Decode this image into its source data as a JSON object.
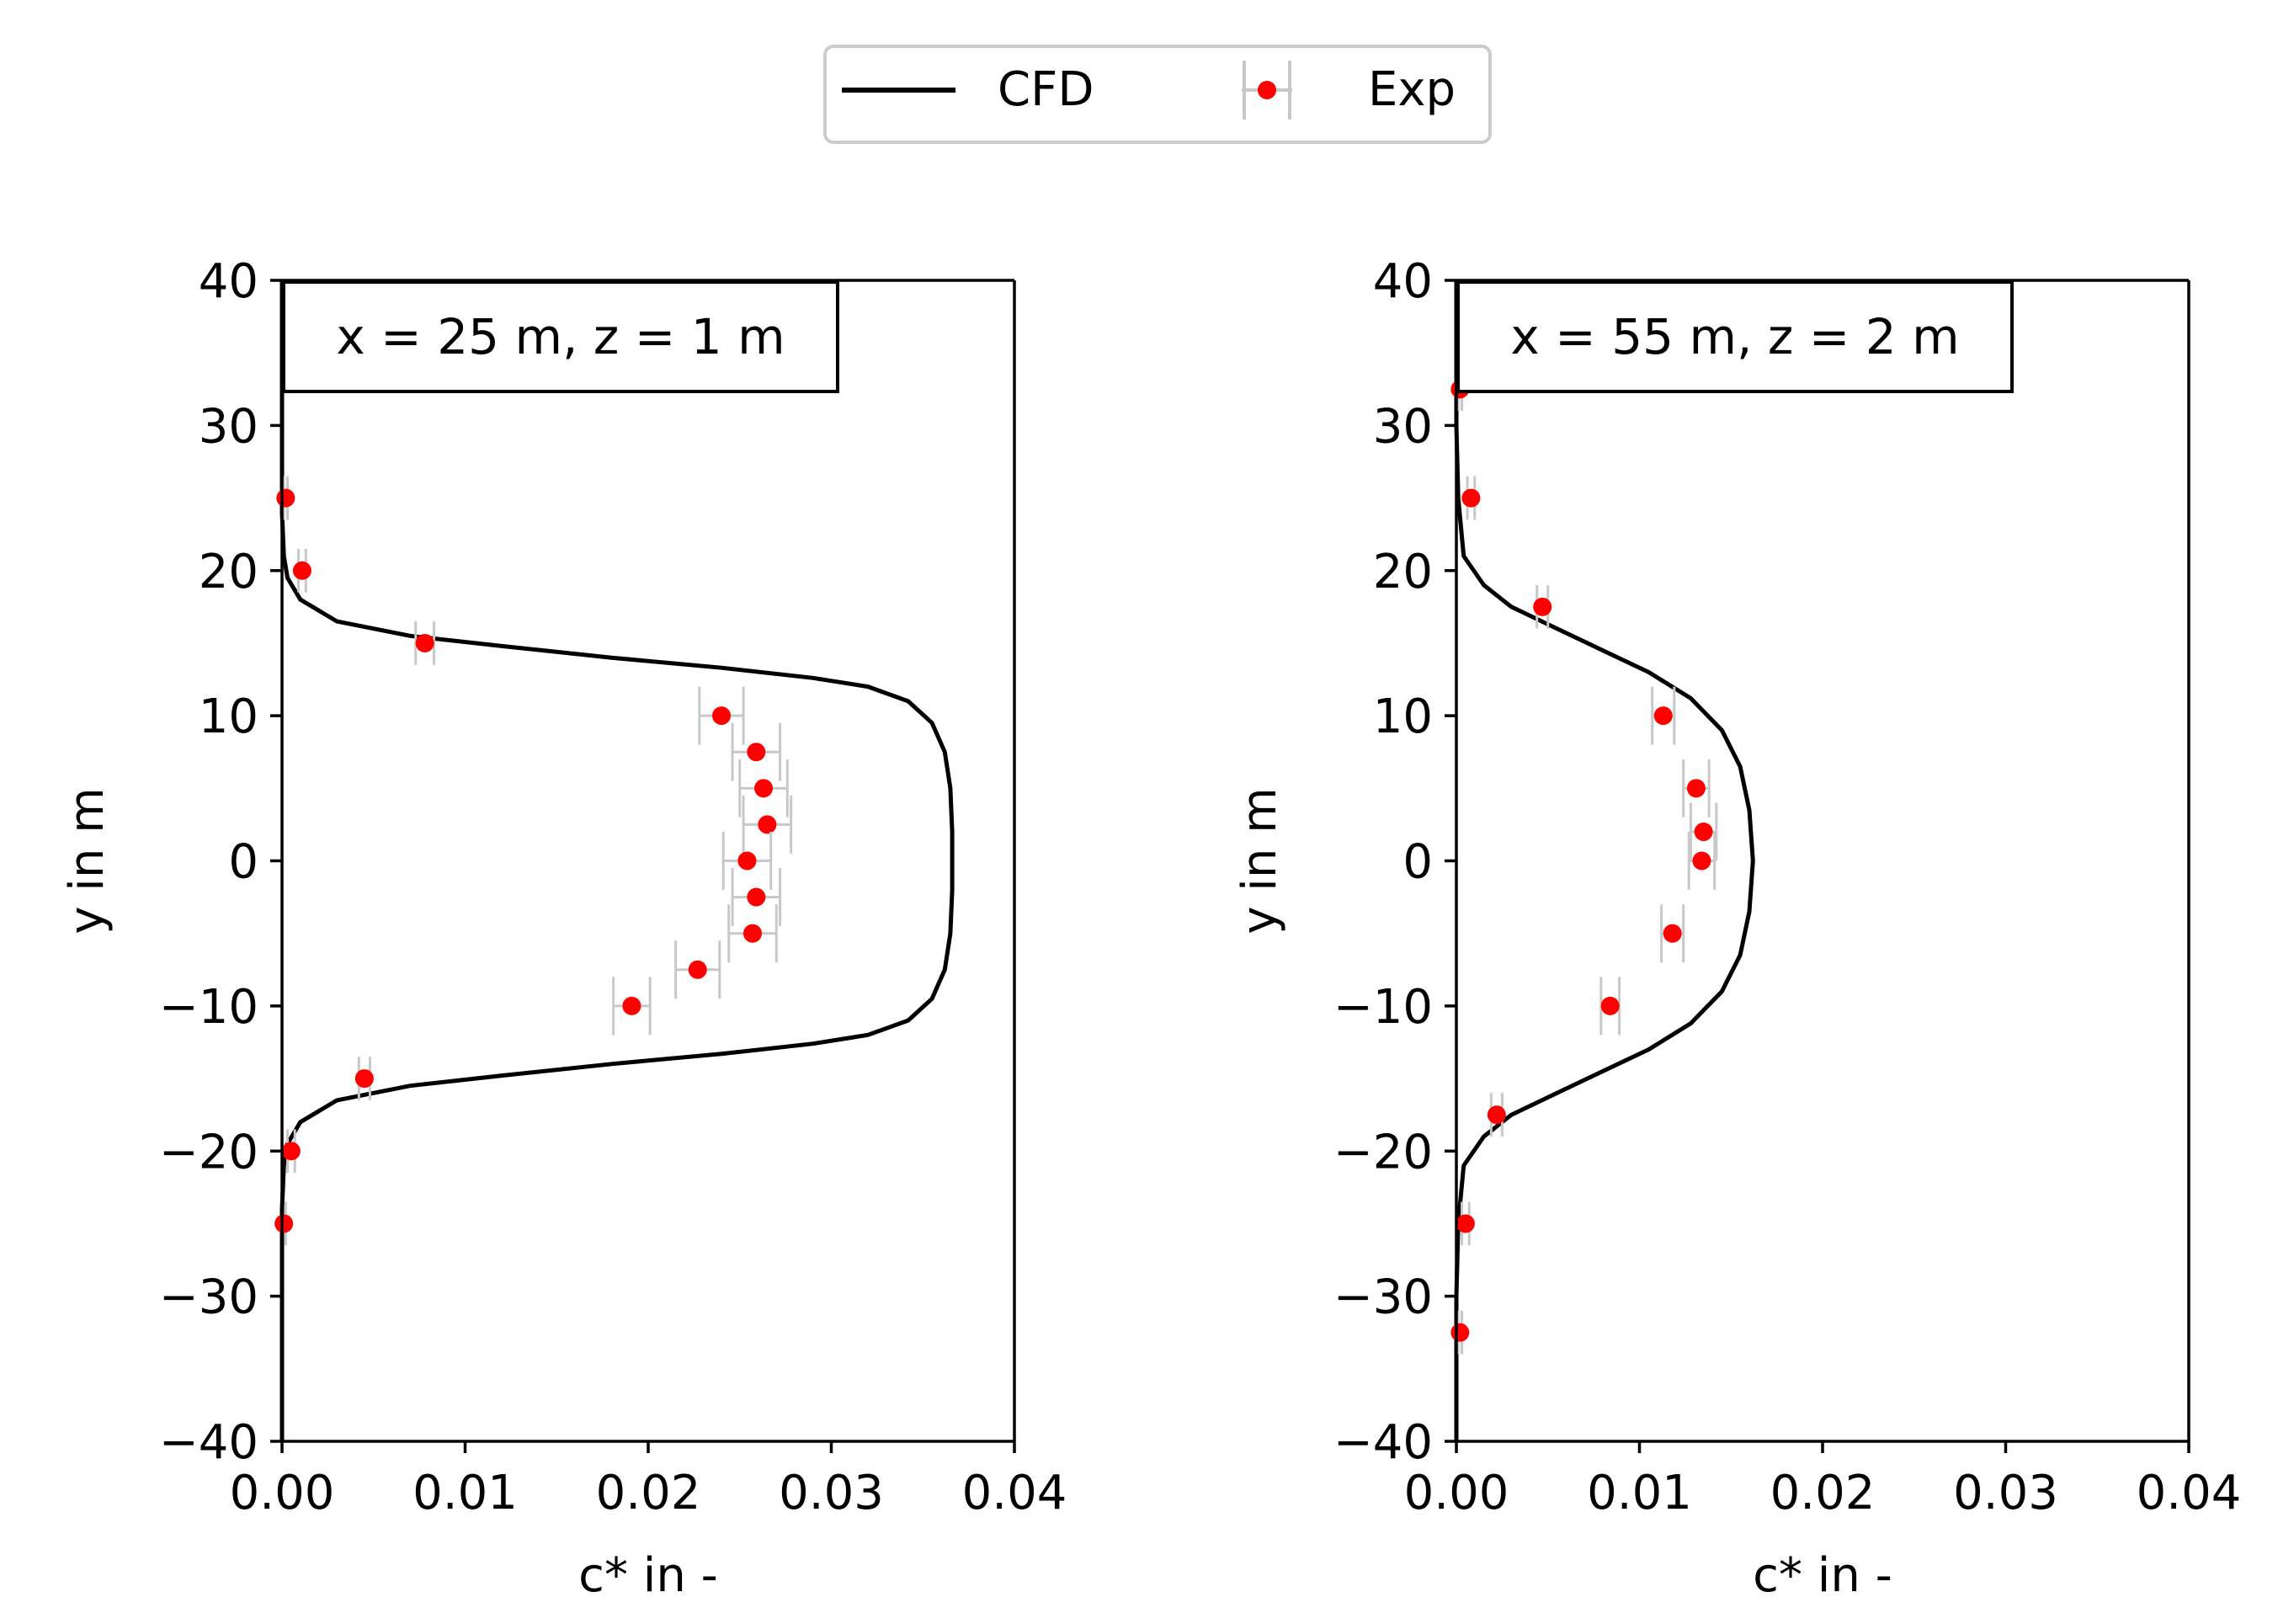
{
  "legend": {
    "entries": [
      {
        "label": "CFD",
        "kind": "line",
        "color": "#000000"
      },
      {
        "label": "Exp",
        "kind": "marker",
        "color": "#ff0000",
        "errorbar_color": "#c8c8c8"
      }
    ]
  },
  "colors": {
    "cfd": "#000000",
    "exp": "#ff0000",
    "errorbar": "#c8c8c8",
    "frame": "#000000"
  },
  "chart_data": [
    {
      "type": "line",
      "annotation": "x = 25 m, z = 1 m",
      "xlabel": "c* in -",
      "ylabel": "y in m",
      "xlim": [
        0,
        0.04
      ],
      "ylim": [
        -40,
        40
      ],
      "xticks": [
        0,
        0.01,
        0.02,
        0.03,
        0.04
      ],
      "xtick_labels": [
        "0.00",
        "0.01",
        "0.02",
        "0.03",
        "0.04"
      ],
      "yticks": [
        -40,
        -30,
        -20,
        -10,
        0,
        10,
        20,
        30,
        40
      ],
      "ytick_labels": [
        "−40",
        "−30",
        "−20",
        "−10",
        "0",
        "10",
        "20",
        "30",
        "40"
      ],
      "series": [
        {
          "name": "CFD",
          "points": [
            [
              0,
              -40
            ],
            [
              0,
              -30
            ],
            [
              0,
              -24
            ],
            [
              0.0001,
              -21
            ],
            [
              0.0003,
              -19.5
            ],
            [
              0.001,
              -18
            ],
            [
              0.003,
              -16.5
            ],
            [
              0.007,
              -15.5
            ],
            [
              0.012,
              -14.8
            ],
            [
              0.018,
              -14
            ],
            [
              0.024,
              -13.3
            ],
            [
              0.029,
              -12.6
            ],
            [
              0.032,
              -12
            ],
            [
              0.0342,
              -11
            ],
            [
              0.0355,
              -9.5
            ],
            [
              0.0362,
              -7.5
            ],
            [
              0.0365,
              -5
            ],
            [
              0.0366,
              -2
            ],
            [
              0.0366,
              0
            ],
            [
              0.0366,
              2
            ],
            [
              0.0365,
              5
            ],
            [
              0.0362,
              7.5
            ],
            [
              0.0355,
              9.5
            ],
            [
              0.0342,
              11
            ],
            [
              0.032,
              12
            ],
            [
              0.029,
              12.6
            ],
            [
              0.024,
              13.3
            ],
            [
              0.018,
              14
            ],
            [
              0.012,
              14.8
            ],
            [
              0.007,
              15.5
            ],
            [
              0.003,
              16.5
            ],
            [
              0.001,
              18
            ],
            [
              0.0003,
              19.5
            ],
            [
              0.0001,
              21
            ],
            [
              0,
              24
            ],
            [
              0,
              30
            ],
            [
              0,
              40
            ]
          ]
        },
        {
          "name": "Exp",
          "points": [
            {
              "x": 0.0002,
              "y": 25,
              "xerr": 0.0001,
              "yerr": 1.5
            },
            {
              "x": 0.0011,
              "y": 20,
              "xerr": 0.0002,
              "yerr": 1.5
            },
            {
              "x": 0.0078,
              "y": 15,
              "xerr": 0.0005,
              "yerr": 1.5
            },
            {
              "x": 0.024,
              "y": 10,
              "xerr": 0.0012,
              "yerr": 2
            },
            {
              "x": 0.0259,
              "y": 7.5,
              "xerr": 0.0013,
              "yerr": 2
            },
            {
              "x": 0.0263,
              "y": 5,
              "xerr": 0.0013,
              "yerr": 2
            },
            {
              "x": 0.0265,
              "y": 2.5,
              "xerr": 0.0013,
              "yerr": 2
            },
            {
              "x": 0.0254,
              "y": 0,
              "xerr": 0.0013,
              "yerr": 2
            },
            {
              "x": 0.0259,
              "y": -2.5,
              "xerr": 0.0013,
              "yerr": 2
            },
            {
              "x": 0.0257,
              "y": -5,
              "xerr": 0.0013,
              "yerr": 2
            },
            {
              "x": 0.0227,
              "y": -7.5,
              "xerr": 0.0012,
              "yerr": 2
            },
            {
              "x": 0.0191,
              "y": -10,
              "xerr": 0.001,
              "yerr": 2
            },
            {
              "x": 0.0045,
              "y": -15,
              "xerr": 0.0003,
              "yerr": 1.5
            },
            {
              "x": 0.0005,
              "y": -20,
              "xerr": 0.0002,
              "yerr": 1.5
            },
            {
              "x": 0.0001,
              "y": -25,
              "xerr": 0.0001,
              "yerr": 1.5
            }
          ]
        }
      ]
    },
    {
      "type": "line",
      "annotation": "x = 55 m, z = 2 m",
      "xlabel": "c* in -",
      "ylabel": "y in m",
      "xlim": [
        0,
        0.04
      ],
      "ylim": [
        -40,
        40
      ],
      "xticks": [
        0,
        0.01,
        0.02,
        0.03,
        0.04
      ],
      "xtick_labels": [
        "0.00",
        "0.01",
        "0.02",
        "0.03",
        "0.04"
      ],
      "yticks": [
        -40,
        -30,
        -20,
        -10,
        0,
        10,
        20,
        30,
        40
      ],
      "ytick_labels": [
        "−40",
        "−30",
        "−20",
        "−10",
        "0",
        "10",
        "20",
        "30",
        "40"
      ],
      "series": [
        {
          "name": "CFD",
          "points": [
            [
              0,
              -40
            ],
            [
              0,
              -30
            ],
            [
              0.0001,
              -25
            ],
            [
              0.0004,
              -21
            ],
            [
              0.0015,
              -19
            ],
            [
              0.003,
              -17.5
            ],
            [
              0.0055,
              -16
            ],
            [
              0.008,
              -14.5
            ],
            [
              0.0105,
              -13
            ],
            [
              0.0128,
              -11.2
            ],
            [
              0.0145,
              -9
            ],
            [
              0.0155,
              -6.5
            ],
            [
              0.016,
              -3.5
            ],
            [
              0.0162,
              0
            ],
            [
              0.016,
              3.5
            ],
            [
              0.0155,
              6.5
            ],
            [
              0.0145,
              9
            ],
            [
              0.0128,
              11.2
            ],
            [
              0.0105,
              13
            ],
            [
              0.008,
              14.5
            ],
            [
              0.0055,
              16
            ],
            [
              0.003,
              17.5
            ],
            [
              0.0015,
              19
            ],
            [
              0.0004,
              21
            ],
            [
              0.0001,
              25
            ],
            [
              0,
              30
            ],
            [
              0,
              40
            ]
          ]
        },
        {
          "name": "Exp",
          "points": [
            {
              "x": 0.0002,
              "y": 32.5,
              "xerr": 0.0001,
              "yerr": 1.5
            },
            {
              "x": 0.0008,
              "y": 25,
              "xerr": 0.0002,
              "yerr": 1.5
            },
            {
              "x": 0.0047,
              "y": 17.5,
              "xerr": 0.0003,
              "yerr": 1.5
            },
            {
              "x": 0.0113,
              "y": 10,
              "xerr": 0.0006,
              "yerr": 2
            },
            {
              "x": 0.0131,
              "y": 5,
              "xerr": 0.0007,
              "yerr": 2
            },
            {
              "x": 0.0135,
              "y": 2,
              "xerr": 0.0007,
              "yerr": 2
            },
            {
              "x": 0.0134,
              "y": 0,
              "xerr": 0.0007,
              "yerr": 2
            },
            {
              "x": 0.0118,
              "y": -5,
              "xerr": 0.0006,
              "yerr": 2
            },
            {
              "x": 0.0084,
              "y": -10,
              "xerr": 0.0005,
              "yerr": 2
            },
            {
              "x": 0.0022,
              "y": -17.5,
              "xerr": 0.0003,
              "yerr": 1.5
            },
            {
              "x": 0.0005,
              "y": -25,
              "xerr": 0.0002,
              "yerr": 1.5
            },
            {
              "x": 0.0002,
              "y": -32.5,
              "xerr": 0.0001,
              "yerr": 1.5
            }
          ]
        }
      ]
    }
  ]
}
